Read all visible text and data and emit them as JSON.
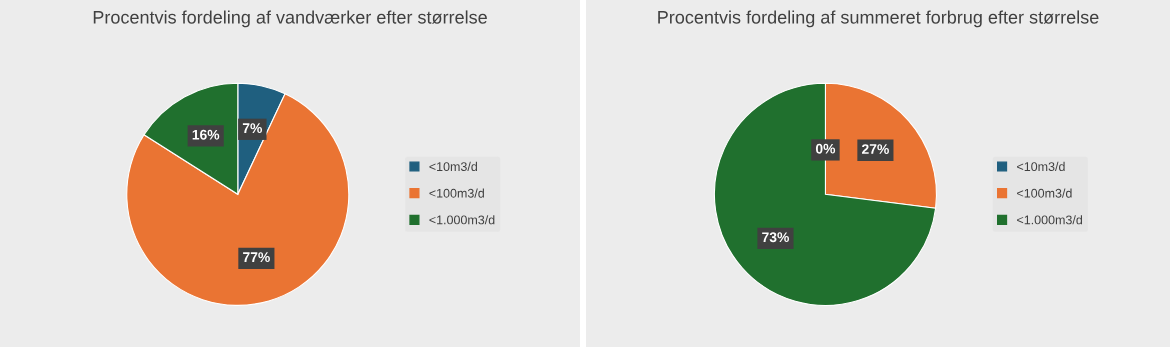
{
  "chart_data": [
    {
      "type": "pie",
      "title": "Procentvis fordeling af vandværker efter størrelse",
      "categories": [
        "<10m3/d",
        "<100m3/d",
        "<1.000m3/d"
      ],
      "values": [
        7,
        77,
        16
      ],
      "value_labels": [
        "7%",
        "77%",
        "16%"
      ],
      "colors": [
        "#1f5f7f",
        "#ea7433",
        "#20702e"
      ],
      "legend": "right"
    },
    {
      "type": "pie",
      "title": "Procentvis fordeling af summeret forbrug efter størrelse",
      "categories": [
        "<10m3/d",
        "<100m3/d",
        "<1.000m3/d"
      ],
      "values": [
        0,
        27,
        73
      ],
      "value_labels": [
        "0%",
        "27%",
        "73%"
      ],
      "colors": [
        "#1f5f7f",
        "#ea7433",
        "#20702e"
      ],
      "legend": "right"
    }
  ]
}
